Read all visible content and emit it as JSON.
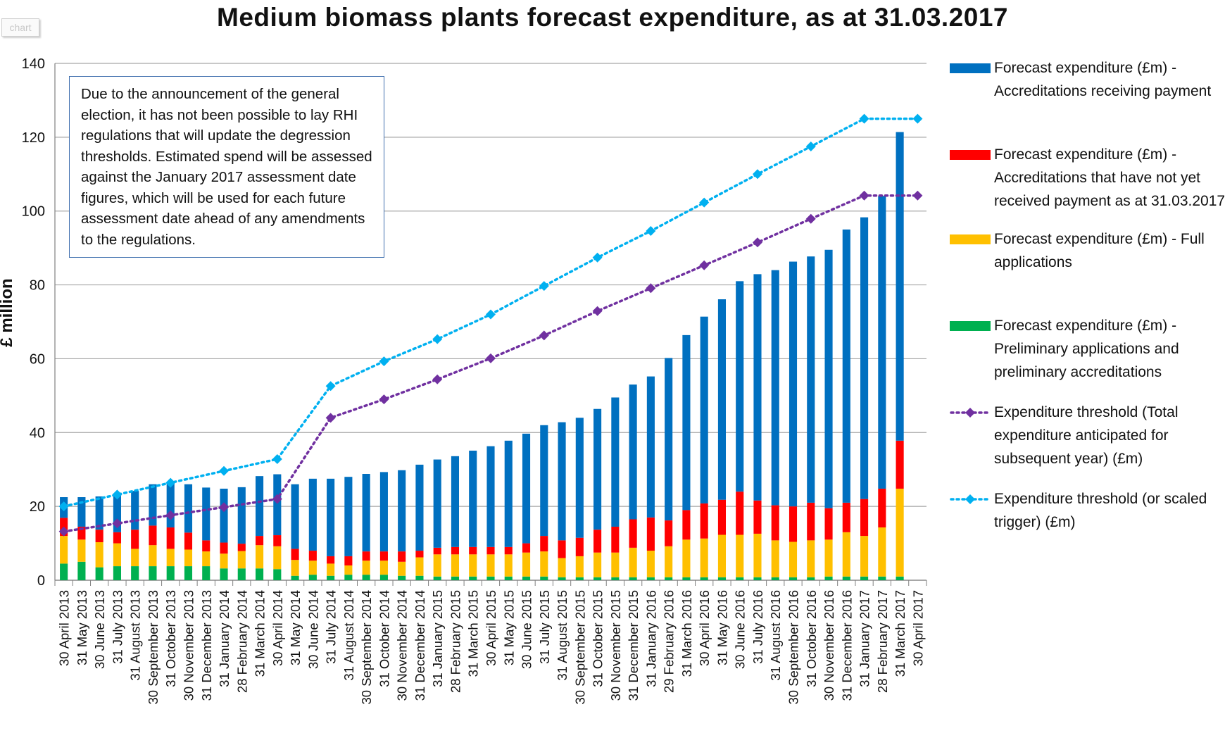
{
  "chip_label": "chart",
  "note": "Due to the announcement of the general election, it has not been possible to lay RHI regulations that will update the degression thresholds. Estimated spend will be assessed against the January 2017 assessment date figures, which will be used for each future assessment date ahead of any amendments to the regulations.",
  "colors": {
    "receiving": "#0070C0",
    "not_yet": "#FF0000",
    "full": "#FFC000",
    "preliminary": "#00B050",
    "threshold_total": "#7030A0",
    "threshold_trigger": "#00B0F0"
  },
  "chart_data": {
    "type": "bar",
    "stacked": true,
    "title": "Medium biomass plants forecast expenditure, as at 31.03.2017",
    "ylabel": "£ million",
    "xlabel": "",
    "ylim": [
      0,
      140
    ],
    "yticks": [
      0,
      20,
      40,
      60,
      80,
      100,
      120,
      140
    ],
    "grid": true,
    "legend_position": "right",
    "categories": [
      "30 April 2013",
      "31 May 2013",
      "30 June 2013",
      "31 July 2013",
      "31 August 2013",
      "30 September 2013",
      "31 October 2013",
      "30 November 2013",
      "31 December 2013",
      "31 January 2014",
      "28 February 2014",
      "31 March 2014",
      "30 April 2014",
      "31 May 2014",
      "30 June 2014",
      "31 July 2014",
      "31 August 2014",
      "30 September 2014",
      "31 October 2014",
      "30 November 2014",
      "31 December 2014",
      "31 January 2015",
      "28 February 2015",
      "31 March 2015",
      "30 April 2015",
      "31 May 2015",
      "30 June 2015",
      "31 July 2015",
      "31 August 2015",
      "30 September 2015",
      "31 October 2015",
      "30 November 2015",
      "31 December 2015",
      "31 January 2016",
      "29 February 2016",
      "31 March 2016",
      "30 April 2016",
      "31 May 2016",
      "30 June 2016",
      "31 July 2016",
      "31 August 2016",
      "30 September 2016",
      "31 October 2016",
      "30 November 2016",
      "31 December 2016",
      "31 January 2017",
      "28 February 2017",
      "31 March 2017",
      "30 April 2017"
    ],
    "series": [
      {
        "name": "Forecast expenditure (£m) - Preliminary applications and preliminary accreditations",
        "kind": "bar",
        "color_key": "preliminary",
        "values": [
          4.5,
          5,
          3.5,
          3.8,
          3.8,
          3.8,
          3.8,
          3.8,
          3.8,
          3.2,
          3.2,
          3.2,
          3,
          1.2,
          1.5,
          1.2,
          1.5,
          1.5,
          1.5,
          1.2,
          1.2,
          1,
          1,
          1,
          1,
          1,
          1,
          1,
          0.8,
          0.8,
          0.8,
          0.8,
          0.8,
          0.8,
          0.8,
          0.8,
          0.8,
          0.8,
          0.8,
          0.8,
          0.8,
          0.8,
          0.8,
          1,
          1,
          1,
          1,
          1,
          null
        ]
      },
      {
        "name": "Forecast expenditure (£m) - Full applications",
        "kind": "bar",
        "color_key": "full",
        "values": [
          7.5,
          6,
          6.8,
          6.2,
          4.7,
          5.7,
          4.7,
          4.5,
          4,
          4,
          4.7,
          6.3,
          6.2,
          4.3,
          3.8,
          3.3,
          2.5,
          3.8,
          3.8,
          3.8,
          5,
          6,
          6,
          6,
          6,
          6,
          6.5,
          6.8,
          5.2,
          5.7,
          6.7,
          6.7,
          8,
          7.2,
          8.4,
          10.2,
          10.5,
          11.5,
          11.5,
          11.8,
          10,
          9.6,
          10,
          10,
          12,
          11,
          13.3,
          23.8,
          null
        ]
      },
      {
        "name": "Forecast expenditure (£m) - Accreditations that have not yet received payment as at 31.03.2017",
        "kind": "bar",
        "color_key": "not_yet",
        "values": [
          4.9,
          3.5,
          3.4,
          3,
          5.2,
          5.3,
          5.8,
          4.6,
          3,
          3,
          2,
          2.5,
          3,
          3,
          2.7,
          2,
          2.5,
          2.5,
          2.5,
          2.8,
          1.8,
          1.8,
          2,
          2,
          2,
          2,
          2.5,
          4.2,
          4.8,
          5,
          6.2,
          7,
          7.7,
          9,
          7,
          8,
          9.5,
          9.5,
          11.7,
          9,
          9.5,
          9.6,
          10.2,
          8.5,
          8,
          10,
          10.5,
          13,
          null
        ]
      },
      {
        "name": "Forecast expenditure (£m) - Accreditations receiving payment",
        "kind": "bar",
        "color_key": "receiving",
        "values": [
          5.6,
          8,
          9,
          10.5,
          10.5,
          11.2,
          12.2,
          13.1,
          14.3,
          14.6,
          15.3,
          16.2,
          16.5,
          17.5,
          19.5,
          21,
          21.5,
          21,
          21.5,
          22,
          23.3,
          23.9,
          24.6,
          26.1,
          27.3,
          28.8,
          29.7,
          30,
          32,
          32.5,
          32.7,
          35,
          36.5,
          38.2,
          44,
          47.4,
          50.6,
          54.3,
          57,
          61.3,
          63.7,
          66.3,
          66.7,
          70,
          74,
          76.3,
          79.3,
          83.6,
          null
        ]
      },
      {
        "name": "Expenditure threshold (Total expenditure anticipated for subsequent year) (£m)",
        "kind": "line",
        "color_key": "threshold_total",
        "values": [
          13.2,
          null,
          null,
          15.4,
          null,
          null,
          17.6,
          null,
          null,
          19.8,
          null,
          null,
          22,
          null,
          null,
          44,
          null,
          null,
          49,
          null,
          null,
          54.4,
          null,
          null,
          60.1,
          null,
          null,
          66.3,
          null,
          null,
          72.9,
          null,
          null,
          79.1,
          null,
          null,
          85.3,
          null,
          null,
          91.5,
          null,
          null,
          97.9,
          null,
          null,
          104.2,
          null,
          null,
          104.2
        ]
      },
      {
        "name": "Expenditure threshold (or scaled trigger) (£m)",
        "kind": "line",
        "color_key": "threshold_trigger",
        "values": [
          20,
          null,
          null,
          23.2,
          null,
          null,
          26.4,
          null,
          null,
          29.6,
          null,
          null,
          32.8,
          null,
          null,
          52.6,
          null,
          null,
          59.3,
          null,
          null,
          65.3,
          null,
          null,
          72,
          null,
          null,
          79.7,
          null,
          null,
          87.4,
          null,
          null,
          94.6,
          null,
          null,
          102.3,
          null,
          null,
          110,
          null,
          null,
          117.5,
          null,
          null,
          125,
          null,
          null,
          125
        ]
      }
    ]
  },
  "legend": [
    {
      "label": "Forecast expenditure (£m) - Accreditations receiving payment",
      "kind": "bar",
      "color_key": "receiving"
    },
    {
      "label": "Forecast expenditure (£m) - Accreditations that have not yet received payment as at 31.03.2017",
      "kind": "bar",
      "color_key": "not_yet"
    },
    {
      "label": "Forecast expenditure (£m) - Full applications",
      "kind": "bar",
      "color_key": "full"
    },
    {
      "label": "Forecast expenditure (£m) - Preliminary applications and preliminary accreditations",
      "kind": "bar",
      "color_key": "preliminary"
    },
    {
      "label": "Expenditure threshold (Total expenditure anticipated for subsequent year) (£m)",
      "kind": "line",
      "color_key": "threshold_total"
    },
    {
      "label": "Expenditure threshold (or scaled trigger) (£m)",
      "kind": "line",
      "color_key": "threshold_trigger"
    }
  ]
}
